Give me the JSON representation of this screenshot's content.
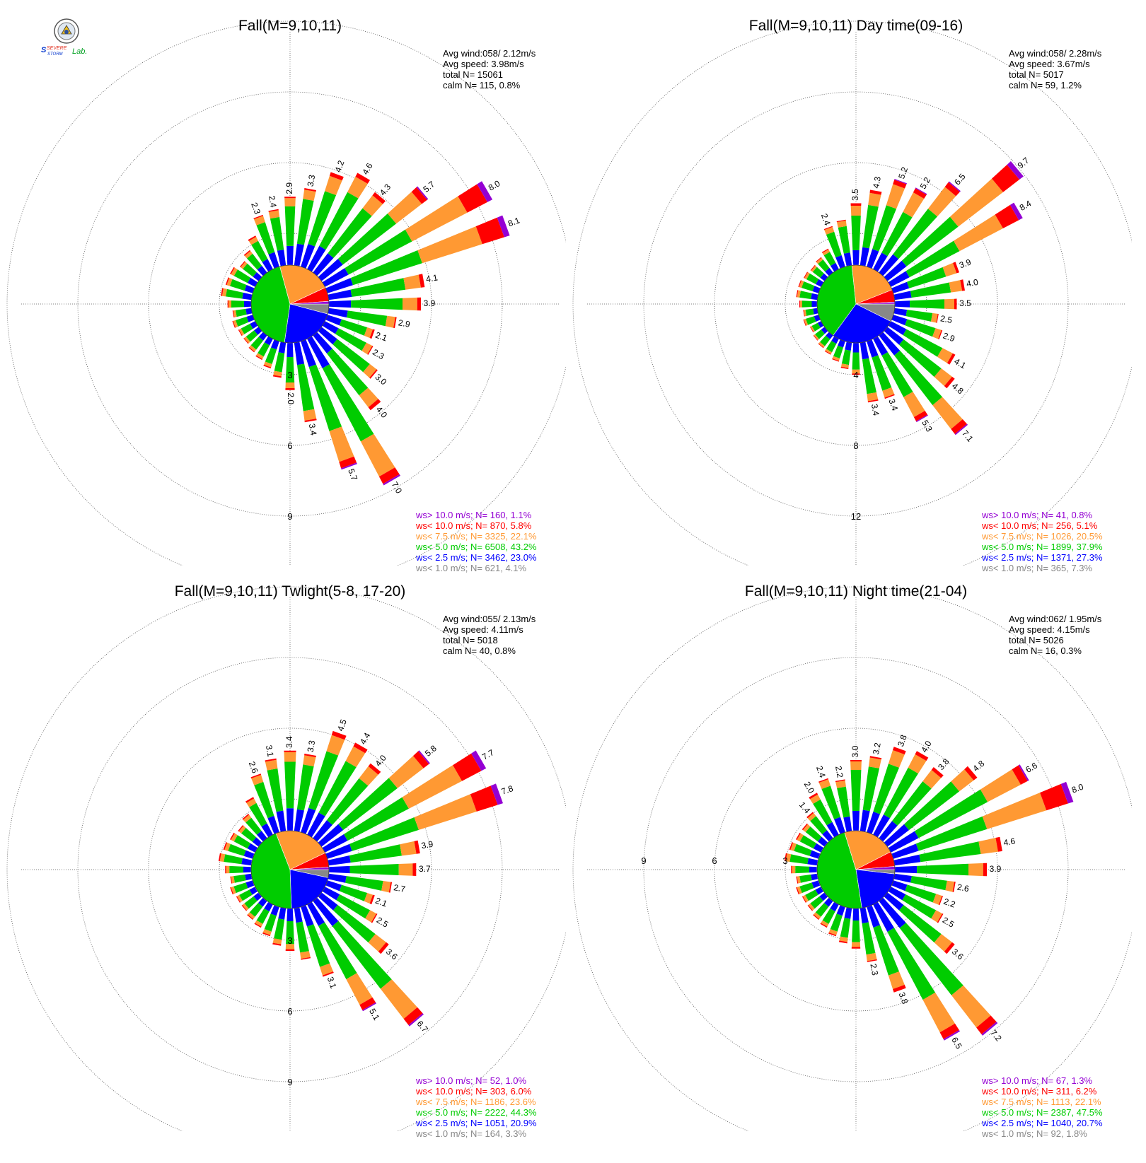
{
  "logo": {
    "line1": "SEVERE",
    "line2": "STORM",
    "line3": "Lab."
  },
  "colors": {
    "gt10": "#9400d3",
    "lt10": "#ff0000",
    "lt75": "#ff9933",
    "lt5": "#00cc00",
    "lt25": "#0000ff",
    "lt1": "#888888",
    "grid": "#555555"
  },
  "chart_data": [
    {
      "type": "wind_rose",
      "title": "Fall(M=9,10,11)",
      "stats": [
        "Avg wind:058/ 2.12m/s",
        "Avg speed: 3.98m/s",
        "total N=      15061",
        "calm N=     115,   0.8%"
      ],
      "legend": [
        {
          "label": "ws> 10.0 m/s; N=    160,   1.1%",
          "color": "#9400d3"
        },
        {
          "label": "ws< 10.0 m/s; N=    870,   5.8%",
          "color": "#ff0000"
        },
        {
          "label": "ws<  7.5 m/s; N=   3325,  22.1%",
          "color": "#ff9933"
        },
        {
          "label": "ws<  5.0 m/s; N=   6508,  43.2%",
          "color": "#00cc00"
        },
        {
          "label": "ws<  2.5 m/s; N=   3462,  23.0%",
          "color": "#0000ff"
        },
        {
          "label": "ws<  1.0 m/s; N=    621,   4.1%",
          "color": "#888888"
        }
      ],
      "ring_labels": [
        "3",
        "6",
        "9"
      ],
      "ring_step": 3,
      "ring_label_side": "bottom",
      "pie": [
        4.1,
        23.0,
        43.2,
        22.1,
        5.8,
        1.1
      ],
      "directions": [
        0,
        10,
        20,
        30,
        40,
        50,
        60,
        70,
        80,
        90,
        100,
        110,
        120,
        130,
        140,
        150,
        160,
        170,
        180,
        190,
        200,
        210,
        220,
        230,
        240,
        250,
        260,
        270,
        280,
        290,
        300,
        310,
        320,
        330,
        340,
        350
      ],
      "totals": [
        2.9,
        3.3,
        4.2,
        4.6,
        4.3,
        5.7,
        8.0,
        8.1,
        4.1,
        3.9,
        2.9,
        2.1,
        2.3,
        3.0,
        4.0,
        7.0,
        5.7,
        3.4,
        2.0,
        1.5,
        1.2,
        1.0,
        0.9,
        0.8,
        0.8,
        0.9,
        0.8,
        1.0,
        1.3,
        1.2,
        1.2,
        1.0,
        1.2,
        1.6,
        2.3,
        2.4
      ],
      "labeled": [
        0,
        10,
        20,
        30,
        40,
        50,
        60,
        70,
        80,
        90,
        100,
        110,
        120,
        130,
        140,
        150,
        160,
        170,
        180,
        340,
        350
      ]
    },
    {
      "type": "wind_rose",
      "title": "Fall(M=9,10,11) Day time(09-16)",
      "stats": [
        "Avg wind:058/ 2.28m/s",
        "Avg speed: 3.67m/s",
        "total N=        5017",
        "calm N=      59,   1.2%"
      ],
      "legend": [
        {
          "label": "ws> 10.0 m/s; N=     41,   0.8%",
          "color": "#9400d3"
        },
        {
          "label": "ws< 10.0 m/s; N=    256,   5.1%",
          "color": "#ff0000"
        },
        {
          "label": "ws<  7.5 m/s; N=   1026,  20.5%",
          "color": "#ff9933"
        },
        {
          "label": "ws<  5.0 m/s; N=   1899,  37.9%",
          "color": "#00cc00"
        },
        {
          "label": "ws<  2.5 m/s; N=   1371,  27.3%",
          "color": "#0000ff"
        },
        {
          "label": "ws<  1.0 m/s; N=    365,   7.3%",
          "color": "#888888"
        }
      ],
      "ring_labels": [
        "4",
        "8",
        "12"
      ],
      "ring_step": 4,
      "ring_label_side": "bottom",
      "pie": [
        7.3,
        27.3,
        37.9,
        20.5,
        5.1,
        0.8
      ],
      "directions": [
        0,
        10,
        20,
        30,
        40,
        50,
        60,
        70,
        80,
        90,
        100,
        110,
        120,
        130,
        140,
        150,
        160,
        170,
        180,
        190,
        200,
        210,
        220,
        230,
        240,
        250,
        260,
        270,
        280,
        290,
        300,
        310,
        320,
        330,
        340,
        350
      ],
      "totals": [
        3.5,
        4.3,
        5.2,
        5.2,
        6.5,
        9.7,
        8.4,
        3.9,
        4.0,
        3.5,
        2.5,
        2.9,
        4.1,
        4.8,
        7.1,
        5.3,
        3.4,
        3.4,
        1.8,
        1.5,
        1.2,
        1.0,
        0.9,
        0.8,
        0.7,
        0.9,
        0.8,
        1.0,
        1.2,
        1.2,
        1.1,
        1.0,
        1.1,
        1.3,
        2.4,
        2.6
      ],
      "labeled": [
        0,
        10,
        20,
        30,
        40,
        50,
        60,
        70,
        80,
        90,
        100,
        110,
        120,
        130,
        140,
        150,
        160,
        170,
        340
      ]
    },
    {
      "type": "wind_rose",
      "title": "Fall(M=9,10,11) Twlight(5-8, 17-20)",
      "stats": [
        "Avg wind:055/ 2.13m/s",
        "Avg speed: 4.11m/s",
        "total N=        5018",
        "calm N=      40,   0.8%"
      ],
      "legend": [
        {
          "label": "ws> 10.0 m/s; N=     52,   1.0%",
          "color": "#9400d3"
        },
        {
          "label": "ws< 10.0 m/s; N=    303,   6.0%",
          "color": "#ff0000"
        },
        {
          "label": "ws<  7.5 m/s; N=   1186,  23.6%",
          "color": "#ff9933"
        },
        {
          "label": "ws<  5.0 m/s; N=   2222,  44.3%",
          "color": "#00cc00"
        },
        {
          "label": "ws<  2.5 m/s; N=   1051,  20.9%",
          "color": "#0000ff"
        },
        {
          "label": "ws<  1.0 m/s; N=    164,   3.3%",
          "color": "#888888"
        }
      ],
      "ring_labels": [
        "3",
        "6",
        "9"
      ],
      "ring_step": 3,
      "ring_label_side": "bottom",
      "pie": [
        3.3,
        20.9,
        44.3,
        23.6,
        6.0,
        1.0
      ],
      "directions": [
        0,
        10,
        20,
        30,
        40,
        50,
        60,
        70,
        80,
        90,
        100,
        110,
        120,
        130,
        140,
        150,
        160,
        170,
        180,
        190,
        200,
        210,
        220,
        230,
        240,
        250,
        260,
        270,
        280,
        290,
        300,
        310,
        320,
        330,
        340,
        350
      ],
      "totals": [
        3.4,
        3.3,
        4.5,
        4.4,
        4.0,
        5.8,
        7.7,
        7.8,
        3.9,
        3.7,
        2.7,
        2.1,
        2.5,
        3.6,
        6.7,
        5.1,
        3.1,
        2.2,
        1.8,
        1.6,
        1.3,
        1.1,
        1.0,
        0.9,
        0.9,
        1.0,
        0.9,
        1.1,
        1.4,
        1.3,
        1.2,
        1.1,
        1.3,
        1.8,
        2.6,
        3.1
      ],
      "labeled": [
        0,
        10,
        20,
        30,
        40,
        50,
        60,
        70,
        80,
        90,
        100,
        110,
        120,
        130,
        140,
        150,
        160,
        340,
        350
      ]
    },
    {
      "type": "wind_rose",
      "title": "Fall(M=9,10,11) Night time(21-04)",
      "stats": [
        "Avg wind:062/ 1.95m/s",
        "Avg speed: 4.15m/s",
        "total N=        5026",
        "calm N=      16,   0.3%"
      ],
      "legend": [
        {
          "label": "ws> 10.0 m/s; N=     67,   1.3%",
          "color": "#9400d3"
        },
        {
          "label": "ws< 10.0 m/s; N=    311,   6.2%",
          "color": "#ff0000"
        },
        {
          "label": "ws<  7.5 m/s; N=   1113,  22.1%",
          "color": "#ff9933"
        },
        {
          "label": "ws<  5.0 m/s; N=   2387,  47.5%",
          "color": "#00cc00"
        },
        {
          "label": "ws<  2.5 m/s; N=   1040,  20.7%",
          "color": "#0000ff"
        },
        {
          "label": "ws<  1.0 m/s; N=     92,   1.8%",
          "color": "#888888"
        }
      ],
      "ring_labels": [
        "3",
        "6",
        "9"
      ],
      "ring_step": 3,
      "ring_label_side": "left",
      "pie": [
        1.8,
        20.7,
        47.5,
        22.1,
        6.2,
        1.3
      ],
      "directions": [
        0,
        10,
        20,
        30,
        40,
        50,
        60,
        70,
        80,
        90,
        100,
        110,
        120,
        130,
        140,
        150,
        160,
        170,
        180,
        190,
        200,
        210,
        220,
        230,
        240,
        250,
        260,
        270,
        280,
        290,
        300,
        310,
        320,
        330,
        340,
        350
      ],
      "totals": [
        3.0,
        3.2,
        3.8,
        4.0,
        3.8,
        4.8,
        6.6,
        8.0,
        4.6,
        3.9,
        2.6,
        2.2,
        2.5,
        3.6,
        7.2,
        6.5,
        3.8,
        2.3,
        1.7,
        1.5,
        1.3,
        1.1,
        1.0,
        0.9,
        0.9,
        1.0,
        0.9,
        1.1,
        1.4,
        1.3,
        1.2,
        1.2,
        1.4,
        2.0,
        2.4,
        2.2
      ],
      "labeled": [
        0,
        10,
        20,
        30,
        40,
        50,
        60,
        70,
        80,
        90,
        100,
        110,
        120,
        130,
        140,
        150,
        160,
        170,
        320,
        330,
        340,
        350
      ]
    }
  ]
}
